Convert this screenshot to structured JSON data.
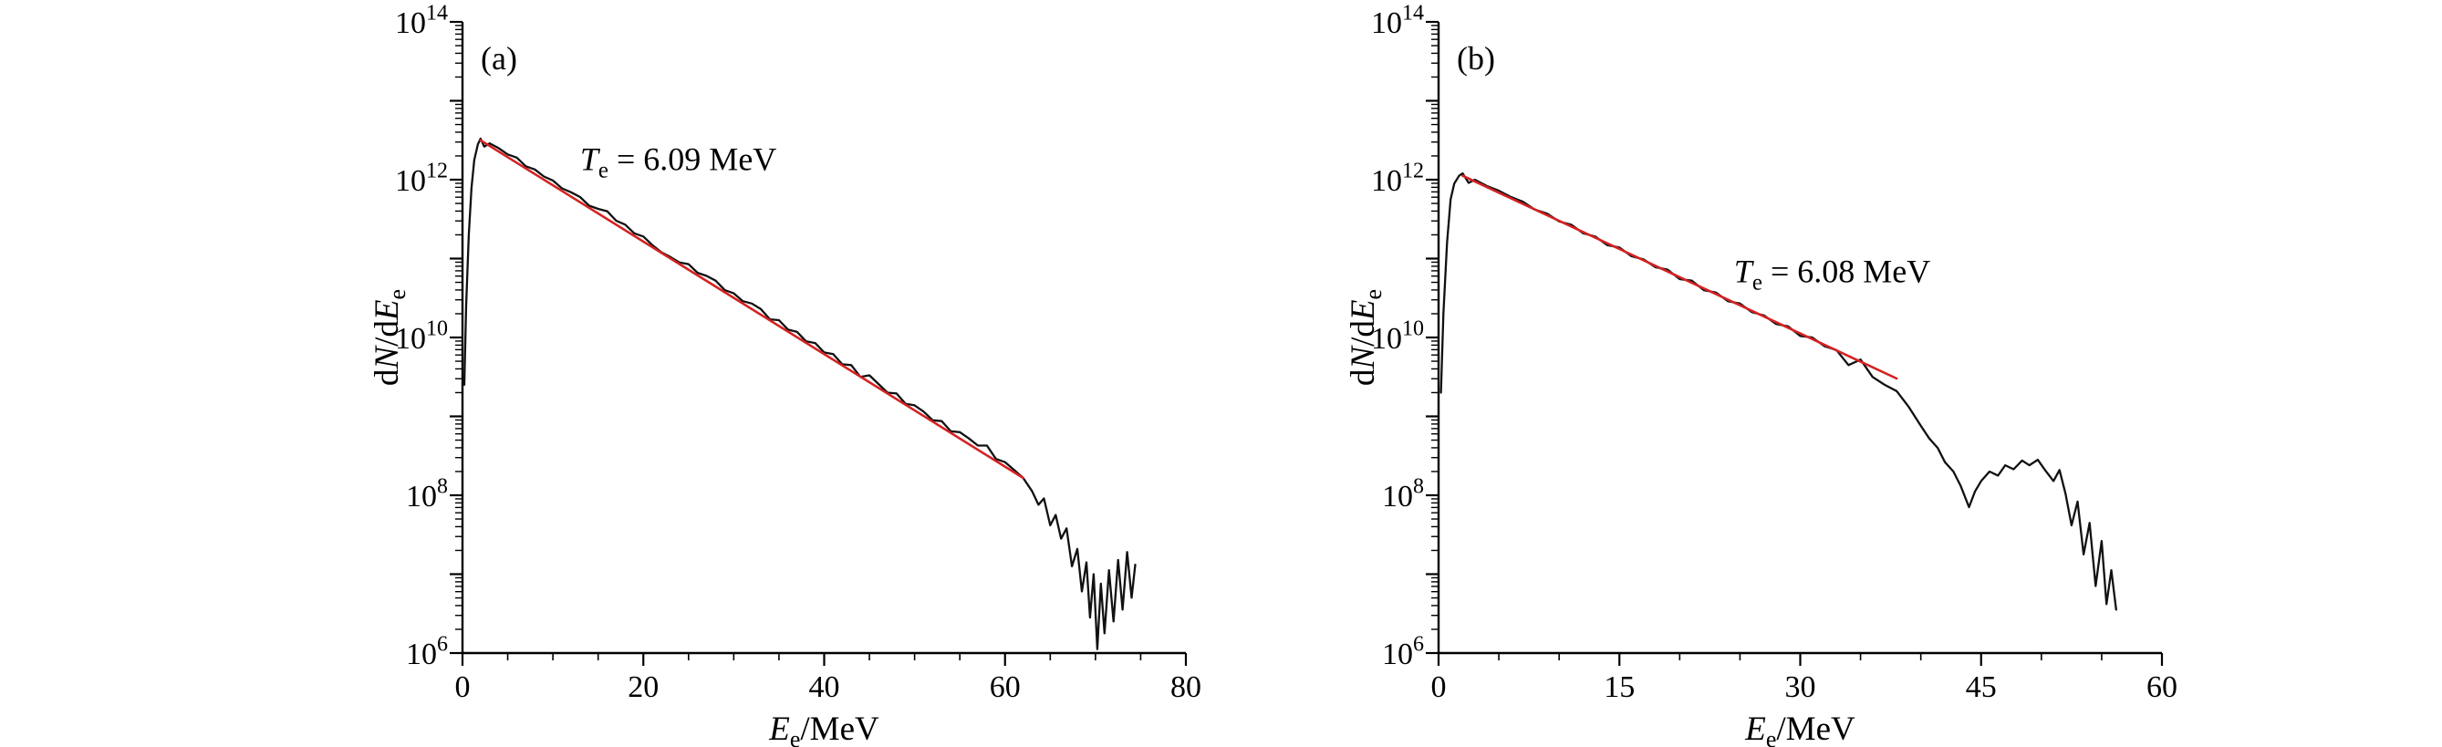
{
  "page": {
    "background": "#ffffff"
  },
  "chart_data": [
    {
      "id": "a",
      "type": "line",
      "panel_label": "(a)",
      "xlabel_text": "Ee/MeV",
      "xlabel_parts": [
        {
          "t": "E",
          "italic": true
        },
        {
          "t": "e",
          "sub": true
        },
        {
          "t": "/MeV"
        }
      ],
      "ylabel_text": "dN/dEe",
      "ylabel_parts": [
        {
          "t": "d"
        },
        {
          "t": "N",
          "italic": true
        },
        {
          "t": "/d"
        },
        {
          "t": "E",
          "italic": true
        },
        {
          "t": "e",
          "sub": true
        }
      ],
      "xlim": [
        0,
        80
      ],
      "xticks": [
        0,
        20,
        40,
        60,
        80
      ],
      "x_minor_step": 5,
      "ylog_exponent_range": [
        6,
        14
      ],
      "ytick_exponents": [
        6,
        8,
        10,
        12,
        14
      ],
      "grid": false,
      "legend": "none",
      "annotation": {
        "text": "Te = 6.09 MeV",
        "x": 13,
        "log10y": 12.12,
        "parts": [
          {
            "t": "T",
            "italic": true
          },
          {
            "t": "e",
            "sub": true
          },
          {
            "t": " = 6.09 MeV"
          }
        ]
      },
      "series": [
        {
          "name": "electron-spectrum",
          "color": "#111111",
          "width": 2.3,
          "x": [
            0.2,
            0.4,
            0.7,
            1.0,
            1.3,
            1.7,
            2.0,
            2.4,
            3.0,
            4,
            5,
            6,
            7,
            8,
            9,
            10,
            11,
            12,
            13,
            14,
            15,
            16,
            17,
            18,
            19,
            20,
            21,
            22,
            23,
            24,
            25,
            26,
            27,
            28,
            29,
            30,
            31,
            32,
            33,
            34,
            35,
            36,
            37,
            38,
            39,
            40,
            41,
            42,
            43,
            44,
            45,
            46,
            47,
            48,
            49,
            50,
            51,
            52,
            53,
            54,
            55,
            56,
            57,
            58,
            59,
            60,
            61,
            62,
            63,
            63.7,
            64.3,
            65,
            65.6,
            66.2,
            66.8,
            67.4,
            68,
            68.5,
            69,
            69.4,
            69.8,
            70.2,
            70.6,
            71,
            71.5,
            72,
            72.5,
            73,
            73.5,
            74,
            74.4
          ],
          "log10y": [
            9.4,
            10.4,
            11.3,
            11.9,
            12.25,
            12.45,
            12.52,
            12.42,
            12.46,
            12.4,
            12.32,
            12.28,
            12.17,
            12.13,
            12.04,
            11.99,
            11.89,
            11.84,
            11.78,
            11.67,
            11.63,
            11.6,
            11.48,
            11.43,
            11.32,
            11.28,
            11.17,
            11.08,
            11.02,
            10.95,
            10.93,
            10.82,
            10.78,
            10.72,
            10.6,
            10.56,
            10.46,
            10.43,
            10.36,
            10.23,
            10.22,
            10.1,
            10.07,
            9.95,
            9.93,
            9.81,
            9.79,
            9.66,
            9.65,
            9.5,
            9.52,
            9.41,
            9.3,
            9.29,
            9.16,
            9.14,
            9.06,
            8.95,
            8.94,
            8.81,
            8.8,
            8.72,
            8.63,
            8.63,
            8.46,
            8.42,
            8.32,
            8.22,
            8.05,
            7.88,
            7.96,
            7.62,
            7.75,
            7.45,
            7.58,
            7.1,
            7.32,
            6.78,
            7.15,
            6.45,
            7.0,
            6.05,
            6.88,
            6.25,
            7.05,
            6.4,
            7.18,
            6.55,
            7.28,
            6.7,
            7.12
          ]
        },
        {
          "name": "exponential-fit",
          "color": "#d42222",
          "width": 2.6,
          "temperature_MeV": 6.09,
          "x": [
            2,
            62
          ],
          "log10y": [
            12.5,
            8.22
          ]
        }
      ]
    },
    {
      "id": "b",
      "type": "line",
      "panel_label": "(b)",
      "xlabel_text": "Ee/MeV",
      "xlabel_parts": [
        {
          "t": "E",
          "italic": true
        },
        {
          "t": "e",
          "sub": true
        },
        {
          "t": "/MeV"
        }
      ],
      "ylabel_text": "dN/dEe",
      "ylabel_parts": [
        {
          "t": "d"
        },
        {
          "t": "N",
          "italic": true
        },
        {
          "t": "/d"
        },
        {
          "t": "E",
          "italic": true
        },
        {
          "t": "e",
          "sub": true
        }
      ],
      "xlim": [
        0,
        60
      ],
      "xticks": [
        0,
        15,
        30,
        45,
        60
      ],
      "x_minor_step": 5,
      "ylog_exponent_range": [
        6,
        14
      ],
      "ytick_exponents": [
        6,
        8,
        10,
        12,
        14
      ],
      "grid": false,
      "legend": "none",
      "annotation": {
        "text": "Te = 6.08 MeV",
        "x": 24.5,
        "log10y": 10.7,
        "parts": [
          {
            "t": "T",
            "italic": true
          },
          {
            "t": "e",
            "sub": true
          },
          {
            "t": " = 6.08 MeV"
          }
        ]
      },
      "series": [
        {
          "name": "electron-spectrum",
          "color": "#111111",
          "width": 2.3,
          "x": [
            0.2,
            0.4,
            0.7,
            1.0,
            1.3,
            1.7,
            2.0,
            2.5,
            3.0,
            4,
            5,
            6,
            7,
            8,
            9,
            10,
            11,
            12,
            13,
            14,
            15,
            16,
            17,
            18,
            19,
            20,
            21,
            22,
            23,
            24,
            25,
            26,
            27,
            28,
            29,
            30,
            31,
            32,
            33,
            34,
            35,
            36,
            37,
            38,
            39,
            40,
            40.7,
            41.4,
            42,
            42.7,
            43.3,
            44,
            44.5,
            45,
            45.7,
            46.4,
            47,
            47.7,
            48.4,
            49,
            49.7,
            50.3,
            51,
            51.5,
            52,
            52.5,
            53,
            53.5,
            54,
            54.5,
            55,
            55.4,
            55.8,
            56.2
          ],
          "log10y": [
            9.3,
            10.3,
            11.2,
            11.75,
            11.95,
            12.05,
            12.08,
            11.96,
            12.0,
            11.92,
            11.86,
            11.78,
            11.72,
            11.62,
            11.57,
            11.47,
            11.43,
            11.32,
            11.28,
            11.17,
            11.14,
            11.03,
            10.99,
            10.89,
            10.86,
            10.74,
            10.72,
            10.6,
            10.57,
            10.46,
            10.43,
            10.32,
            10.28,
            10.17,
            10.14,
            10.02,
            10.0,
            9.89,
            9.84,
            9.65,
            9.72,
            9.5,
            9.4,
            9.32,
            9.12,
            8.88,
            8.72,
            8.6,
            8.42,
            8.3,
            8.12,
            7.85,
            8.05,
            8.18,
            8.3,
            8.25,
            8.38,
            8.33,
            8.44,
            8.38,
            8.45,
            8.32,
            8.18,
            8.32,
            8.02,
            7.62,
            7.92,
            7.25,
            7.65,
            6.85,
            7.42,
            6.62,
            7.05,
            6.55
          ]
        },
        {
          "name": "exponential-fit",
          "color": "#d42222",
          "width": 2.6,
          "temperature_MeV": 6.08,
          "x": [
            2,
            38
          ],
          "log10y": [
            12.05,
            9.48
          ]
        }
      ]
    }
  ]
}
